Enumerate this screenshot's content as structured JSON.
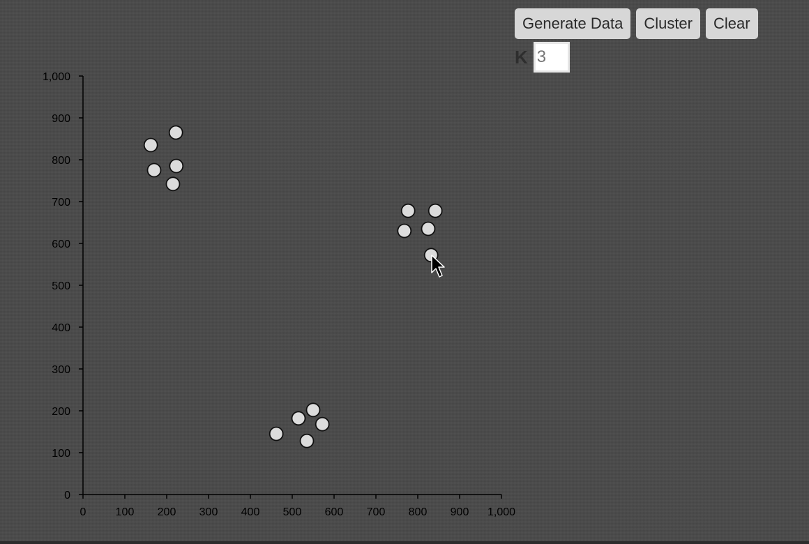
{
  "controls": {
    "generate_label": "Generate Data",
    "cluster_label": "Cluster",
    "clear_label": "Clear",
    "k_label": "K",
    "k_value": "3"
  },
  "chart_data": {
    "type": "scatter",
    "title": "",
    "xlabel": "",
    "ylabel": "",
    "xlim": [
      0,
      1000
    ],
    "ylim": [
      0,
      1000
    ],
    "grid": false,
    "x_ticks": [
      "0",
      "100",
      "200",
      "300",
      "400",
      "500",
      "600",
      "700",
      "800",
      "900",
      "1,000"
    ],
    "y_ticks": [
      "0",
      "100",
      "200",
      "300",
      "400",
      "500",
      "600",
      "700",
      "800",
      "900",
      "1,000"
    ],
    "points": [
      {
        "x": 162,
        "y": 835
      },
      {
        "x": 222,
        "y": 865
      },
      {
        "x": 170,
        "y": 775
      },
      {
        "x": 223,
        "y": 785
      },
      {
        "x": 215,
        "y": 742
      },
      {
        "x": 777,
        "y": 678
      },
      {
        "x": 842,
        "y": 678
      },
      {
        "x": 768,
        "y": 630
      },
      {
        "x": 825,
        "y": 635
      },
      {
        "x": 832,
        "y": 572
      },
      {
        "x": 462,
        "y": 145
      },
      {
        "x": 515,
        "y": 182
      },
      {
        "x": 550,
        "y": 202
      },
      {
        "x": 572,
        "y": 168
      },
      {
        "x": 535,
        "y": 128
      }
    ],
    "point_fill": "#dcdcdc",
    "point_stroke": "#111111",
    "axis_color": "#000000"
  }
}
